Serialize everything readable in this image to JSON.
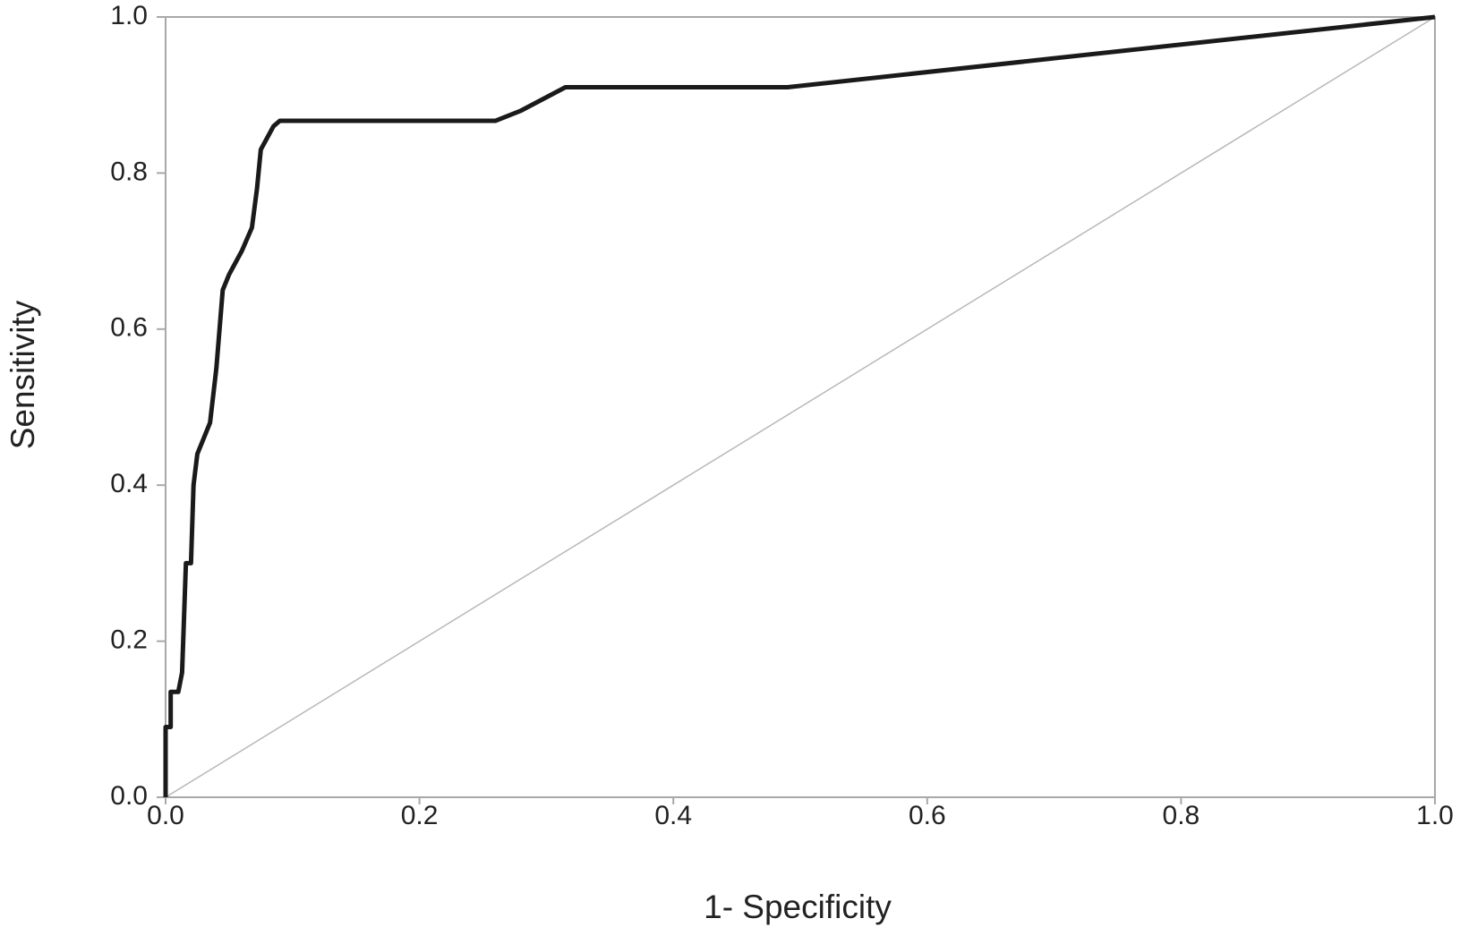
{
  "chart_data": {
    "type": "line",
    "xlabel": "1- Specificity",
    "ylabel": "Sensitivity",
    "xlim": [
      0,
      1
    ],
    "ylim": [
      0,
      1
    ],
    "xticks": [
      {
        "value": 0,
        "label": "0.0"
      },
      0.2,
      0.4,
      0.6,
      0.8,
      {
        "value": 1,
        "label": "1.0"
      }
    ],
    "yticks": [
      {
        "value": 0,
        "label": "0.0"
      },
      0.2,
      0.4,
      0.6,
      0.8,
      {
        "value": 1,
        "label": "1.0"
      }
    ],
    "series": [
      {
        "color": "#1a1a1a",
        "x": [
          0,
          0,
          0.004,
          0.004,
          0.01,
          0.013,
          0.016,
          0.02,
          0.022,
          0.025,
          0.03,
          0.035,
          0.04,
          0.045,
          0.05,
          0.06,
          0.068,
          0.072,
          0.075,
          0.085,
          0.09,
          0.26,
          0.28,
          0.315,
          0.49,
          1
        ],
        "values": [
          0,
          0.09,
          0.09,
          0.135,
          0.135,
          0.16,
          0.3,
          0.3,
          0.4,
          0.44,
          0.46,
          0.48,
          0.55,
          0.65,
          0.67,
          0.7,
          0.73,
          0.78,
          0.83,
          0.86,
          0.867,
          0.867,
          0.88,
          0.91,
          0.91,
          1
        ]
      },
      {
        "color": "#b8b8b8",
        "x": [
          0,
          1
        ],
        "values": [
          0,
          1
        ]
      }
    ]
  }
}
